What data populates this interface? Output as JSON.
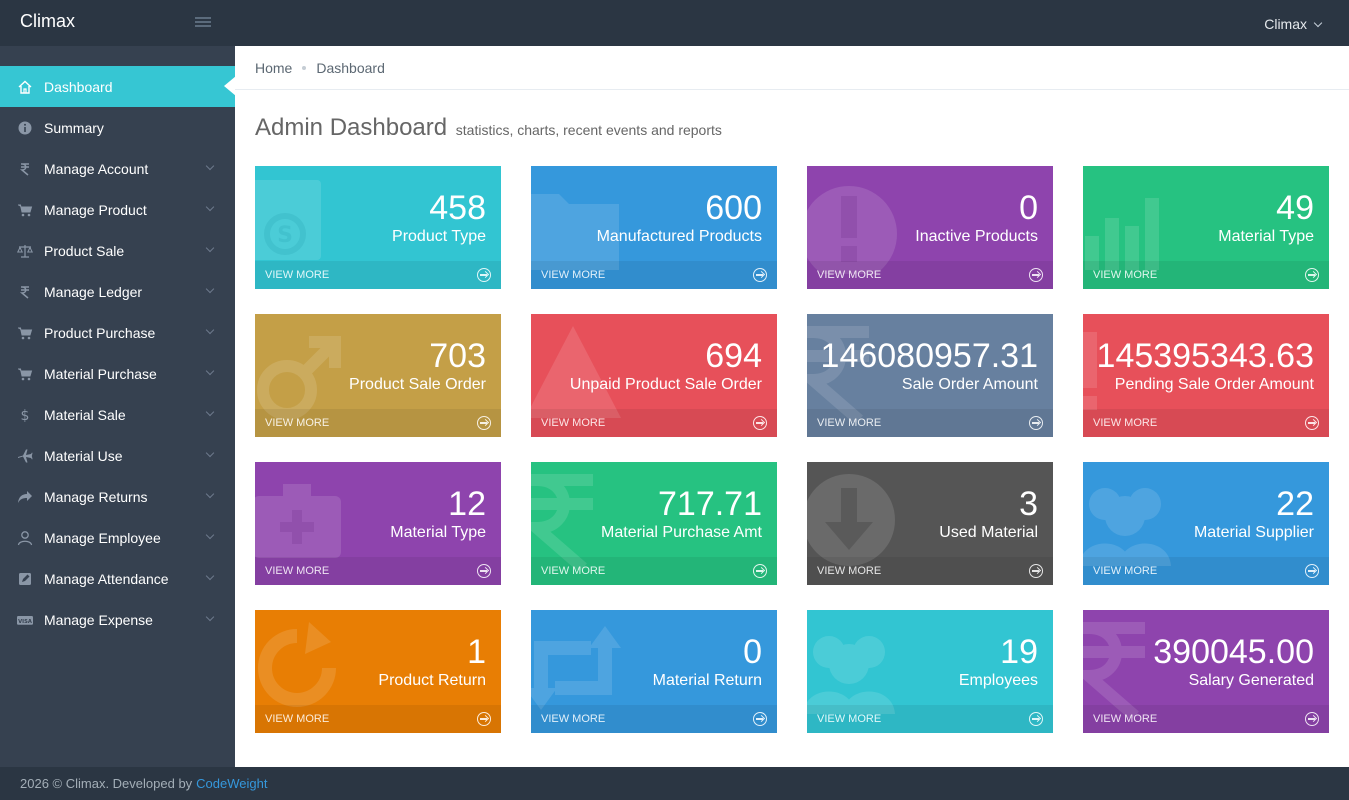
{
  "header": {
    "brand": "Climax",
    "user": "Climax"
  },
  "sidebar": {
    "items": [
      {
        "label": "Dashboard",
        "icon": "home-icon",
        "active": true,
        "expandable": false
      },
      {
        "label": "Summary",
        "icon": "info-icon",
        "active": false,
        "expandable": false
      },
      {
        "label": "Manage Account",
        "icon": "rupee-icon",
        "active": false,
        "expandable": true
      },
      {
        "label": "Manage Product",
        "icon": "cart-icon",
        "active": false,
        "expandable": true
      },
      {
        "label": "Product Sale",
        "icon": "balance-scale-icon",
        "active": false,
        "expandable": true
      },
      {
        "label": "Manage Ledger",
        "icon": "rupee-icon",
        "active": false,
        "expandable": true
      },
      {
        "label": "Product Purchase",
        "icon": "cart-icon",
        "active": false,
        "expandable": true
      },
      {
        "label": "Material Purchase",
        "icon": "cart-icon",
        "active": false,
        "expandable": true
      },
      {
        "label": "Material Sale",
        "icon": "dollar-icon",
        "active": false,
        "expandable": true
      },
      {
        "label": "Material Use",
        "icon": "plane-icon",
        "active": false,
        "expandable": true
      },
      {
        "label": "Manage Returns",
        "icon": "share-icon",
        "active": false,
        "expandable": true
      },
      {
        "label": "Manage Employee",
        "icon": "user-icon",
        "active": false,
        "expandable": true
      },
      {
        "label": "Manage Attendance",
        "icon": "edit-icon",
        "active": false,
        "expandable": true
      },
      {
        "label": "Manage Expense",
        "icon": "visa-card-icon",
        "active": false,
        "expandable": true
      }
    ]
  },
  "breadcrumb": {
    "home": "Home",
    "current": "Dashboard"
  },
  "page": {
    "title": "Admin Dashboard",
    "subtitle": "statistics, charts, recent events and reports"
  },
  "tiles": [
    {
      "value": "458",
      "label": "Product Type",
      "color": "#32c5d2",
      "icon": "money-bill-icon",
      "more": "VIEW MORE"
    },
    {
      "value": "600",
      "label": "Manufactured Products",
      "color": "#3598dc",
      "icon": "folder-icon",
      "more": "VIEW MORE"
    },
    {
      "value": "0",
      "label": "Inactive Products",
      "color": "#8e44ad",
      "icon": "exclamation-circle-icon",
      "more": "VIEW MORE"
    },
    {
      "value": "49",
      "label": "Material Type",
      "color": "#26c281",
      "icon": "bar-chart-icon",
      "more": "VIEW MORE"
    },
    {
      "value": "703",
      "label": "Product Sale Order",
      "color": "#c49f47",
      "icon": "mars-icon",
      "more": "VIEW MORE"
    },
    {
      "value": "694",
      "label": "Unpaid Product Sale Order",
      "color": "#e7505a",
      "icon": "warning-icon",
      "more": "VIEW MORE"
    },
    {
      "value": "146080957.31",
      "label": "Sale Order Amount",
      "color": "#67809f",
      "icon": "rupee-icon",
      "more": "VIEW MORE"
    },
    {
      "value": "145395343.63",
      "label": "Pending Sale Order Amount",
      "color": "#e7505a",
      "icon": "exclamation-icon",
      "more": "VIEW MORE"
    },
    {
      "value": "12",
      "label": "Material Type",
      "color": "#8e44ad",
      "icon": "medkit-icon",
      "more": "VIEW MORE"
    },
    {
      "value": "717.71",
      "label": "Material Purchase Amt",
      "color": "#26c281",
      "icon": "rupee-icon",
      "more": "VIEW MORE"
    },
    {
      "value": "3",
      "label": "Used Material",
      "color": "#555555",
      "icon": "arrow-circle-down-icon",
      "more": "VIEW MORE"
    },
    {
      "value": "22",
      "label": "Material Supplier",
      "color": "#3598dc",
      "icon": "users-icon",
      "more": "VIEW MORE"
    },
    {
      "value": "1",
      "label": "Product Return",
      "color": "#e87e04",
      "icon": "refresh-icon",
      "more": "VIEW MORE"
    },
    {
      "value": "0",
      "label": "Material Return",
      "color": "#3598dc",
      "icon": "retweet-icon",
      "more": "VIEW MORE"
    },
    {
      "value": "19",
      "label": "Employees",
      "color": "#32c5d2",
      "icon": "users-icon",
      "more": "VIEW MORE"
    },
    {
      "value": "390045.00",
      "label": "Salary Generated",
      "color": "#8e44ad",
      "icon": "rupee-icon",
      "more": "VIEW MORE"
    }
  ],
  "footer": {
    "text": "2026 © Climax. Developed by",
    "link": "CodeWeight"
  }
}
